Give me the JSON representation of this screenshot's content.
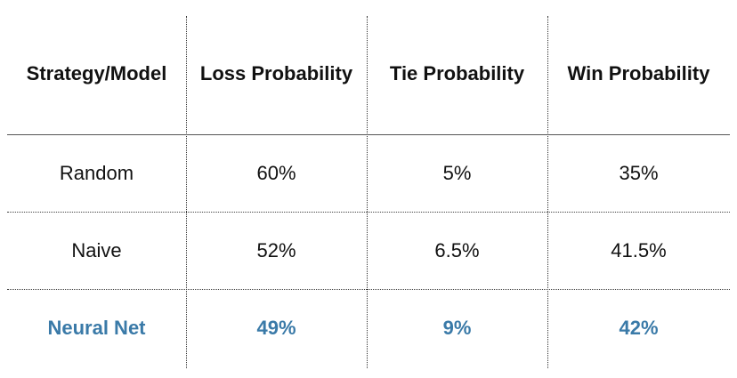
{
  "table": {
    "columns": [
      "Strategy/Model",
      "Loss Probability",
      "Tie Probability",
      "Win Probability"
    ],
    "rows": [
      {
        "model": "Random",
        "loss": "60%",
        "tie": "5%",
        "win": "35%",
        "highlight": false
      },
      {
        "model": "Naive",
        "loss": "52%",
        "tie": "6.5%",
        "win": "41.5%",
        "highlight": false
      },
      {
        "model": "Neural Net",
        "loss": "49%",
        "tie": "9%",
        "win": "42%",
        "highlight": true
      }
    ]
  },
  "colors": {
    "highlight": "#3a7aa8",
    "text": "#111111"
  }
}
